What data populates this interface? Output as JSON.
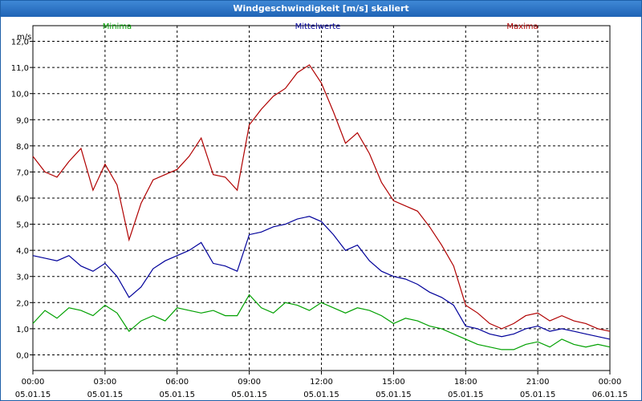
{
  "window": {
    "title": "Windgeschwindigkeit [m/s] skaliert"
  },
  "chart_data": {
    "type": "line",
    "title": "Windgeschwindigkeit [m/s] skaliert",
    "ylabel": "m/s",
    "ylim": [
      -0.6,
      12.6
    ],
    "yticks": [
      "0,0",
      "1,0",
      "2,0",
      "3,0",
      "4,0",
      "5,0",
      "6,0",
      "7,0",
      "8,0",
      "9,0",
      "10,0",
      "11,0",
      "12,0"
    ],
    "xlim": [
      0,
      24
    ],
    "xticks": [
      {
        "time": "00:00",
        "date": "05.01.15"
      },
      {
        "time": "03:00",
        "date": "05.01.15"
      },
      {
        "time": "06:00",
        "date": "05.01.15"
      },
      {
        "time": "09:00",
        "date": "05.01.15"
      },
      {
        "time": "12:00",
        "date": "05.01.15"
      },
      {
        "time": "15:00",
        "date": "05.01.15"
      },
      {
        "time": "18:00",
        "date": "05.01.15"
      },
      {
        "time": "21:00",
        "date": "05.01.15"
      },
      {
        "time": "00:00",
        "date": "06.01.15"
      }
    ],
    "grid": true,
    "legend_position": "top",
    "series": [
      {
        "name": "Minima",
        "color": "#00a000",
        "x": [
          0,
          0.5,
          1,
          1.5,
          2,
          2.5,
          3,
          3.5,
          4,
          4.5,
          5,
          5.5,
          6,
          6.5,
          7,
          7.5,
          8,
          8.5,
          9,
          9.5,
          10,
          10.5,
          11,
          11.5,
          12,
          12.5,
          13,
          13.5,
          14,
          14.5,
          15,
          15.5,
          16,
          16.5,
          17,
          17.5,
          18,
          18.5,
          19,
          19.5,
          20,
          20.5,
          21,
          21.5,
          22,
          22.5,
          23,
          23.5,
          24
        ],
        "values": [
          1.2,
          1.7,
          1.4,
          1.8,
          1.7,
          1.5,
          1.9,
          1.6,
          0.9,
          1.3,
          1.5,
          1.3,
          1.8,
          1.7,
          1.6,
          1.7,
          1.5,
          1.5,
          2.3,
          1.8,
          1.6,
          2.0,
          1.9,
          1.7,
          2.0,
          1.8,
          1.6,
          1.8,
          1.7,
          1.5,
          1.2,
          1.4,
          1.3,
          1.1,
          1.0,
          0.8,
          0.6,
          0.4,
          0.3,
          0.2,
          0.2,
          0.4,
          0.5,
          0.3,
          0.6,
          0.4,
          0.3,
          0.4,
          0.3
        ]
      },
      {
        "name": "Mittelwerte",
        "color": "#00009a",
        "x": [
          0,
          0.5,
          1,
          1.5,
          2,
          2.5,
          3,
          3.5,
          4,
          4.5,
          5,
          5.5,
          6,
          6.5,
          7,
          7.5,
          8,
          8.5,
          9,
          9.5,
          10,
          10.5,
          11,
          11.5,
          12,
          12.5,
          13,
          13.5,
          14,
          14.5,
          15,
          15.5,
          16,
          16.5,
          17,
          17.5,
          18,
          18.5,
          19,
          19.5,
          20,
          20.5,
          21,
          21.5,
          22,
          22.5,
          23,
          23.5,
          24
        ],
        "values": [
          3.8,
          3.7,
          3.6,
          3.8,
          3.4,
          3.2,
          3.5,
          3.0,
          2.2,
          2.6,
          3.3,
          3.6,
          3.8,
          4.0,
          4.3,
          3.5,
          3.4,
          3.2,
          4.6,
          4.7,
          4.9,
          5.0,
          5.2,
          5.3,
          5.1,
          4.6,
          4.0,
          4.2,
          3.6,
          3.2,
          3.0,
          2.9,
          2.7,
          2.4,
          2.2,
          1.9,
          1.1,
          1.0,
          0.8,
          0.7,
          0.8,
          1.0,
          1.1,
          0.9,
          1.0,
          0.9,
          0.8,
          0.7,
          0.6
        ]
      },
      {
        "name": "Maxima",
        "color": "#b00000",
        "x": [
          0,
          0.5,
          1,
          1.5,
          2,
          2.5,
          3,
          3.5,
          4,
          4.5,
          5,
          5.5,
          6,
          6.5,
          7,
          7.5,
          8,
          8.5,
          9,
          9.5,
          10,
          10.5,
          11,
          11.5,
          12,
          12.5,
          13,
          13.5,
          14,
          14.5,
          15,
          15.5,
          16,
          16.5,
          17,
          17.5,
          18,
          18.5,
          19,
          19.5,
          20,
          20.5,
          21,
          21.5,
          22,
          22.5,
          23,
          23.5,
          24
        ],
        "values": [
          7.6,
          7.0,
          6.8,
          7.4,
          7.9,
          6.3,
          7.3,
          6.5,
          4.4,
          5.8,
          6.7,
          6.9,
          7.1,
          7.6,
          8.3,
          6.9,
          6.8,
          6.3,
          8.8,
          9.4,
          9.9,
          10.2,
          10.8,
          11.1,
          10.4,
          9.3,
          8.1,
          8.5,
          7.7,
          6.6,
          5.9,
          5.7,
          5.5,
          4.9,
          4.2,
          3.4,
          1.9,
          1.6,
          1.2,
          1.0,
          1.2,
          1.5,
          1.6,
          1.3,
          1.5,
          1.3,
          1.2,
          1.0,
          0.9
        ]
      }
    ]
  }
}
